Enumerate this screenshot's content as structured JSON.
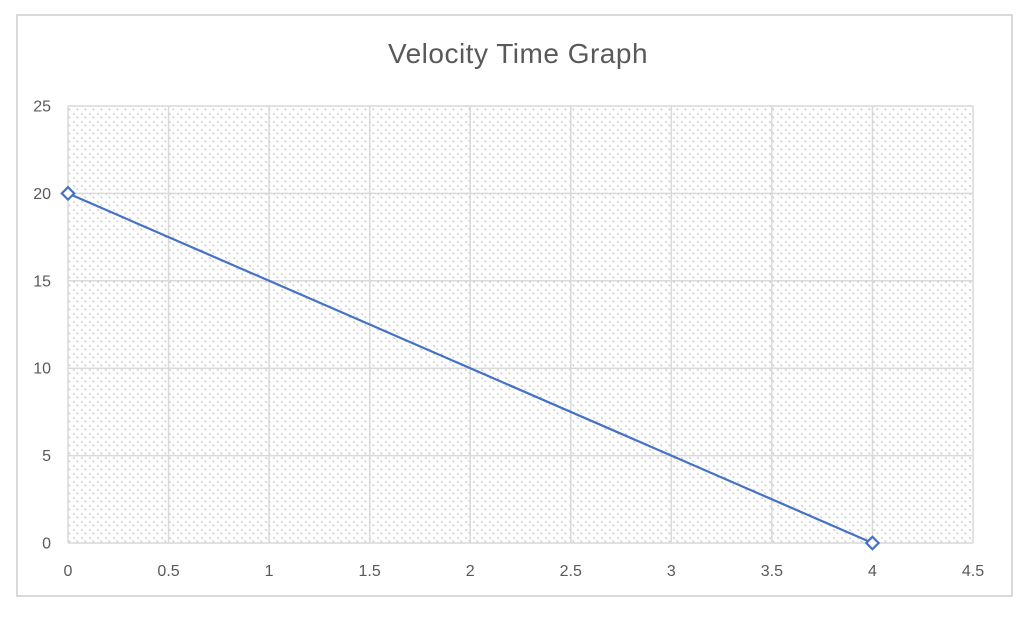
{
  "chart_data": {
    "type": "line",
    "title": "Velocity Time Graph",
    "xlabel": "",
    "ylabel": "",
    "x": [
      0,
      4
    ],
    "y": [
      20,
      0
    ],
    "points": [
      [
        0,
        20
      ],
      [
        4,
        0
      ]
    ],
    "xlim": [
      0,
      4.5
    ],
    "ylim": [
      0,
      25
    ],
    "x_ticks": [
      0,
      0.5,
      1,
      1.5,
      2,
      2.5,
      3,
      3.5,
      4,
      4.5
    ],
    "x_tick_labels": [
      "0",
      "0.5",
      "1",
      "1.5",
      "2",
      "2.5",
      "3",
      "3.5",
      "4",
      "4.5"
    ],
    "y_ticks": [
      0,
      5,
      10,
      15,
      20,
      25
    ],
    "y_tick_labels": [
      "0",
      "5",
      "10",
      "15",
      "20",
      "25"
    ],
    "grid": true,
    "legend": false,
    "marker": "open-diamond",
    "plot_area_fill": "diagonal-hatch",
    "colors": {
      "line": "#4472C4",
      "marker_fill": "#FFFFFF",
      "grid": "#D9D9D9",
      "axis": "#D9D9D9",
      "text": "#595959",
      "hatch": "#CCCCCC",
      "frame_border": "#D9D9D9",
      "background": "#FFFFFF"
    }
  }
}
